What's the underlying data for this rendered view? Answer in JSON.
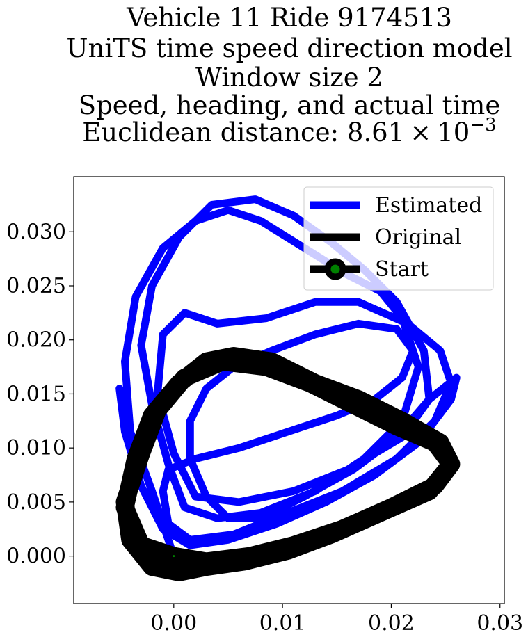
{
  "chart_data": {
    "type": "line",
    "title_lines": [
      "Vehicle 11 Ride 9174513",
      "UniTS time speed direction model",
      "Window size 2",
      "Speed, heading, and actual time"
    ],
    "title_metric": {
      "prefix": "Euclidean distance: 8.61",
      "times": "×",
      "base": "10",
      "exponent": "−3"
    },
    "xlabel": "",
    "ylabel": "",
    "xlim": [
      -0.0092,
      0.0304
    ],
    "ylim": [
      -0.0044,
      0.0351
    ],
    "x_ticks": [
      {
        "value": 0.0,
        "label": "0.00"
      },
      {
        "value": 0.01,
        "label": "0.01"
      },
      {
        "value": 0.02,
        "label": "0.02"
      },
      {
        "value": 0.03,
        "label": "0.03"
      }
    ],
    "y_ticks": [
      {
        "value": 0.0,
        "label": "0.000"
      },
      {
        "value": 0.005,
        "label": "0.005"
      },
      {
        "value": 0.01,
        "label": "0.010"
      },
      {
        "value": 0.015,
        "label": "0.015"
      },
      {
        "value": 0.02,
        "label": "0.020"
      },
      {
        "value": 0.025,
        "label": "0.025"
      },
      {
        "value": 0.03,
        "label": "0.030"
      }
    ],
    "grid": false,
    "legend_position": "top-right",
    "series": [
      {
        "name": "Estimated",
        "color": "#0000ff",
        "points": [
          [
            0.0,
            0.0
          ],
          [
            -0.002,
            0.006
          ],
          [
            -0.004,
            0.0115
          ],
          [
            -0.0045,
            0.018
          ],
          [
            -0.0035,
            0.024
          ],
          [
            -0.001,
            0.0285
          ],
          [
            0.002,
            0.031
          ],
          [
            0.005,
            0.032
          ],
          [
            0.008,
            0.031
          ],
          [
            0.012,
            0.0285
          ],
          [
            0.016,
            0.026
          ],
          [
            0.019,
            0.0245
          ],
          [
            0.021,
            0.022
          ],
          [
            0.0225,
            0.0175
          ],
          [
            0.021,
            0.0125
          ],
          [
            0.0175,
            0.009
          ],
          [
            0.013,
            0.006
          ],
          [
            0.008,
            0.004
          ],
          [
            0.004,
            0.0035
          ],
          [
            0.001,
            0.0045
          ],
          [
            -0.0005,
            0.0085
          ],
          [
            -0.002,
            0.014
          ],
          [
            -0.003,
            0.0195
          ],
          [
            -0.002,
            0.025
          ],
          [
            0.0005,
            0.0295
          ],
          [
            0.0035,
            0.0325
          ],
          [
            0.0075,
            0.033
          ],
          [
            0.011,
            0.0315
          ],
          [
            0.0145,
            0.029
          ],
          [
            0.0175,
            0.0265
          ],
          [
            0.0205,
            0.0235
          ],
          [
            0.023,
            0.019
          ],
          [
            0.0235,
            0.0145
          ],
          [
            0.021,
            0.011
          ],
          [
            0.016,
            0.008
          ],
          [
            0.011,
            0.006
          ],
          [
            0.006,
            0.005
          ],
          [
            0.002,
            0.0055
          ],
          [
            0.0,
            0.0095
          ],
          [
            -0.0015,
            0.015
          ],
          [
            -0.001,
            0.0205
          ],
          [
            0.001,
            0.0225
          ],
          [
            0.004,
            0.0215
          ],
          [
            0.0085,
            0.022
          ],
          [
            0.013,
            0.0235
          ],
          [
            0.017,
            0.0235
          ],
          [
            0.0215,
            0.0215
          ],
          [
            0.0245,
            0.019
          ],
          [
            0.0255,
            0.016
          ],
          [
            0.024,
            0.0125
          ],
          [
            0.0205,
            0.009
          ],
          [
            0.0155,
            0.006
          ],
          [
            0.0105,
            0.004
          ],
          [
            0.0055,
            0.002
          ],
          [
            0.0015,
            0.0015
          ],
          [
            -0.0005,
            0.003
          ],
          [
            -0.001,
            0.006
          ],
          [
            -0.0005,
            0.008
          ],
          [
            0.002,
            0.009
          ],
          [
            0.006,
            0.01
          ],
          [
            0.0105,
            0.0115
          ],
          [
            0.015,
            0.013
          ],
          [
            0.0185,
            0.0145
          ],
          [
            0.021,
            0.0165
          ],
          [
            0.022,
            0.019
          ],
          [
            0.0205,
            0.021
          ],
          [
            0.017,
            0.0215
          ],
          [
            0.013,
            0.0205
          ],
          [
            0.009,
            0.019
          ],
          [
            0.0055,
            0.0175
          ],
          [
            0.003,
            0.0155
          ],
          [
            0.0015,
            0.0125
          ],
          [
            0.0015,
            0.009
          ],
          [
            0.003,
            0.0055
          ],
          [
            0.005,
            0.0035
          ],
          [
            0.008,
            0.0035
          ],
          [
            0.012,
            0.0055
          ],
          [
            0.0165,
            0.008
          ],
          [
            0.0205,
            0.011
          ],
          [
            0.0235,
            0.0145
          ],
          [
            0.026,
            0.0165
          ],
          [
            0.0255,
            0.0145
          ],
          [
            0.0225,
            0.0105
          ],
          [
            0.0185,
            0.0075
          ],
          [
            0.014,
            0.005
          ],
          [
            0.0095,
            0.003
          ],
          [
            0.005,
            0.0015
          ],
          [
            0.0015,
            0.001
          ],
          [
            -0.001,
            0.0025
          ],
          [
            -0.003,
            0.0065
          ],
          [
            -0.0045,
            0.0115
          ],
          [
            -0.005,
            0.0155
          ]
        ]
      },
      {
        "name": "Original",
        "color": "#000000",
        "points": [
          [
            0.0,
            0.0
          ],
          [
            -0.003,
            0.001
          ],
          [
            -0.0045,
            0.0045
          ],
          [
            -0.0035,
            0.009
          ],
          [
            -0.002,
            0.013
          ],
          [
            0.0005,
            0.016
          ],
          [
            0.003,
            0.018
          ],
          [
            0.0055,
            0.0185
          ],
          [
            0.009,
            0.018
          ],
          [
            0.013,
            0.016
          ],
          [
            0.017,
            0.0145
          ],
          [
            0.021,
            0.0125
          ],
          [
            0.0245,
            0.0105
          ],
          [
            0.0255,
            0.0085
          ],
          [
            0.0235,
            0.006
          ],
          [
            0.019,
            0.004
          ],
          [
            0.0145,
            0.002
          ],
          [
            0.0105,
            0.0005
          ],
          [
            0.0065,
            -0.0005
          ],
          [
            0.003,
            -0.001
          ],
          [
            0.0005,
            -0.0015
          ],
          [
            -0.002,
            -0.001
          ],
          [
            -0.004,
            0.0015
          ],
          [
            -0.0045,
            0.005
          ],
          [
            -0.003,
            0.0095
          ],
          [
            -0.0015,
            0.0135
          ],
          [
            0.001,
            0.0165
          ],
          [
            0.0045,
            0.018
          ],
          [
            0.0085,
            0.0175
          ],
          [
            0.0125,
            0.016
          ],
          [
            0.0165,
            0.014
          ],
          [
            0.0205,
            0.012
          ],
          [
            0.024,
            0.0105
          ],
          [
            0.0255,
            0.0085
          ],
          [
            0.024,
            0.0065
          ],
          [
            0.02,
            0.0045
          ],
          [
            0.0155,
            0.0025
          ],
          [
            0.011,
            0.001
          ],
          [
            0.007,
            0.0
          ],
          [
            0.003,
            -0.0005
          ],
          [
            0.0,
            0.0
          ]
        ]
      }
    ],
    "start_marker": {
      "name": "Start",
      "point": [
        0.0,
        0.0
      ],
      "face_color": "#008000",
      "edge_color": "#000000"
    }
  }
}
